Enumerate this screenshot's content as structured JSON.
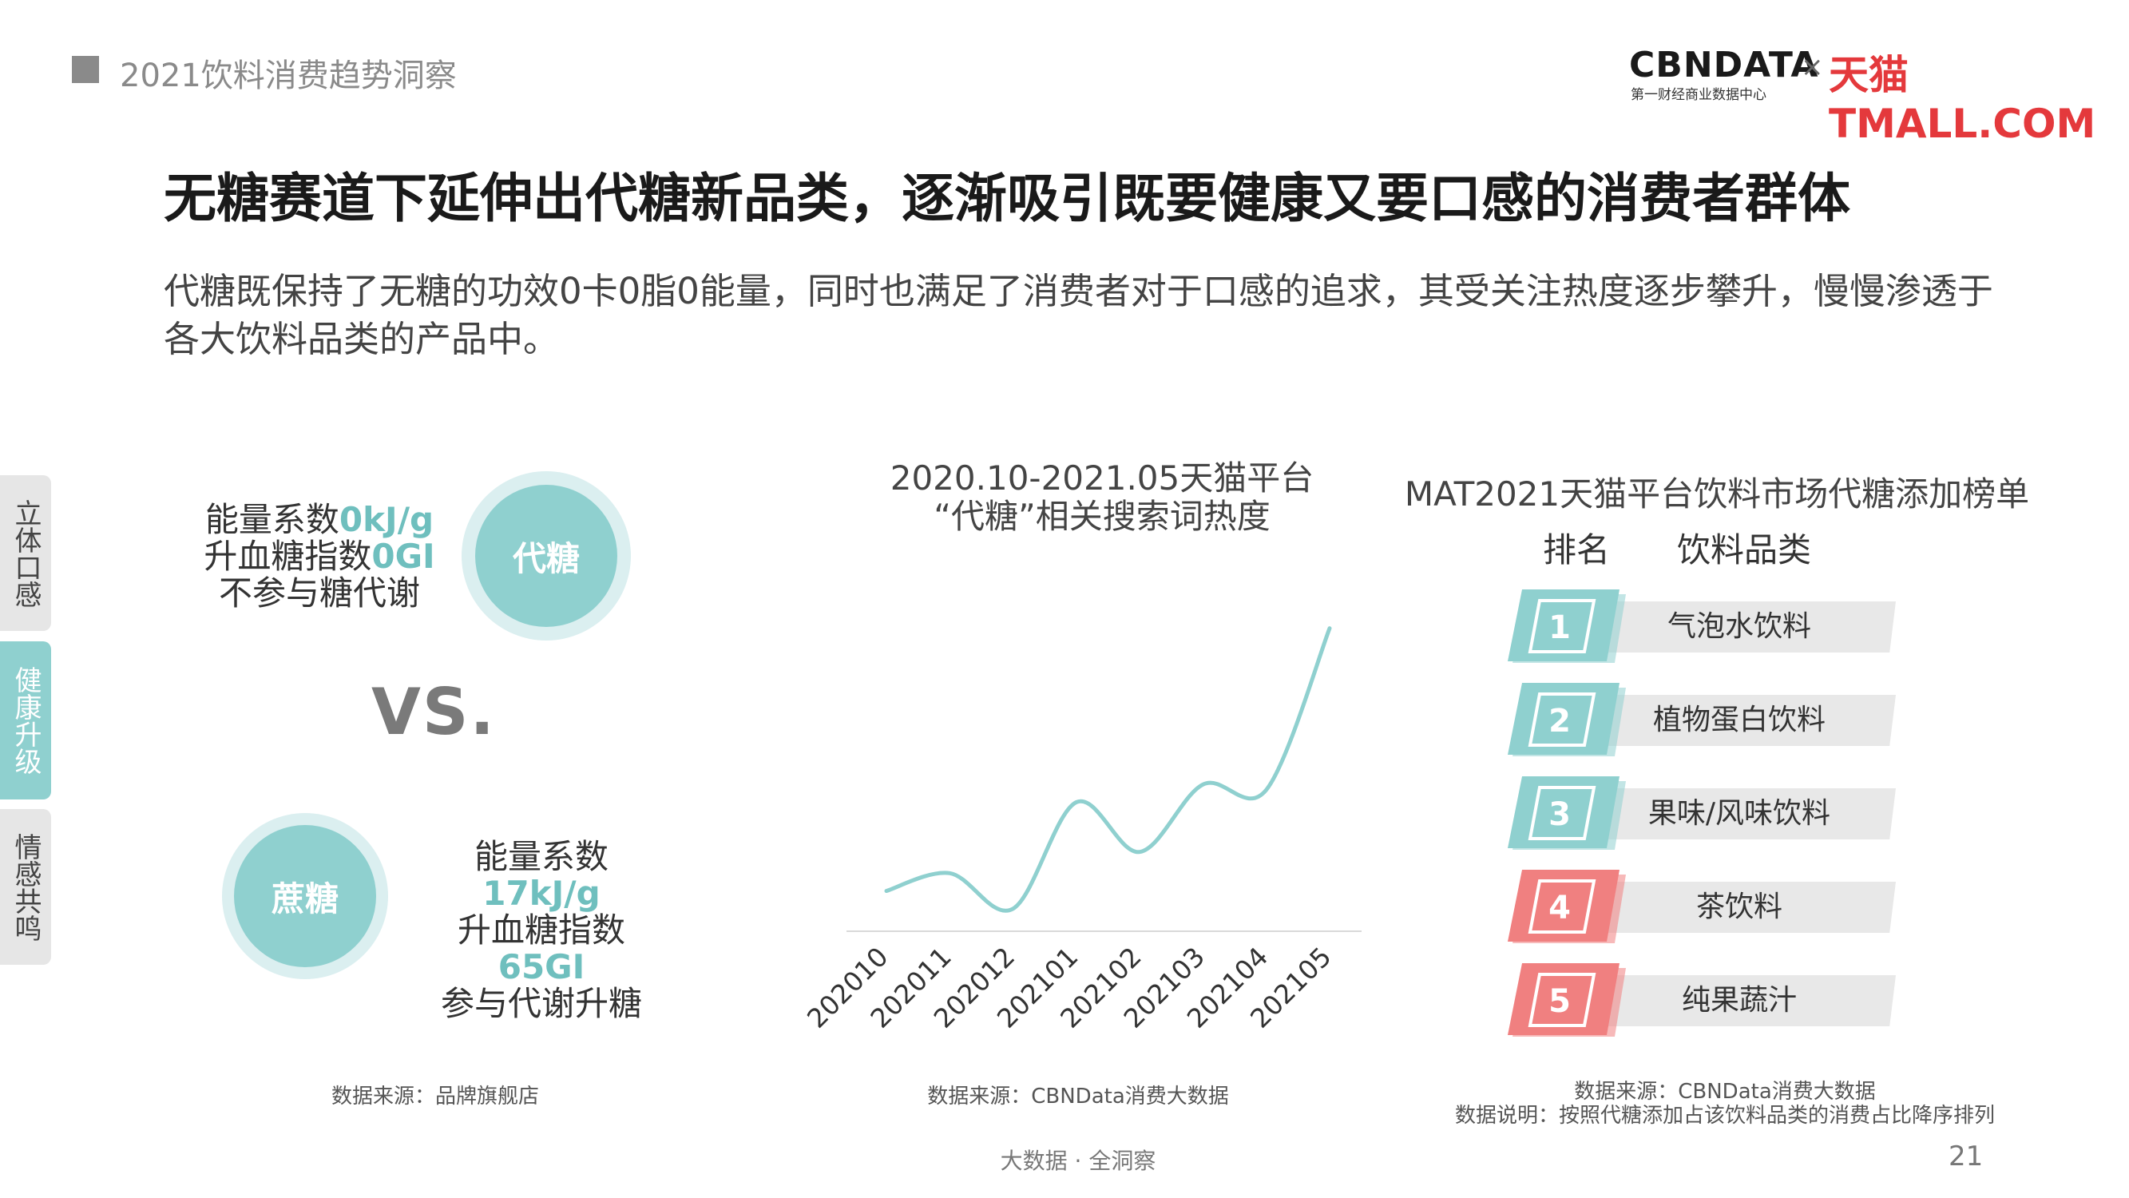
{
  "header": {
    "title": "2021饮料消费趋势洞察"
  },
  "logo": {
    "brand": "CBNDATA",
    "subtitle": "第一财经商业数据中心",
    "separator": "×",
    "partner": "天猫TMALL.COM"
  },
  "main_title": "无糖赛道下延伸出代糖新品类，逐渐吸引既要健康又要口感的消费者群体",
  "description": "代糖既保持了无糖的功效0卡0脂0能量，同时也满足了消费者对于口感的追求，其受关注热度逐步攀升，慢慢渗透于各大饮料品类的产品中。",
  "side_tabs": [
    "立体口感",
    "健康升级",
    "情感共鸣"
  ],
  "comparison": {
    "substitute": {
      "label": "代糖",
      "energy_prefix": "能量系数",
      "energy_value": "0kJ/g",
      "gi_prefix": "升血糖指数",
      "gi_value": "0GI",
      "metabolism": "不参与糖代谢"
    },
    "vs": "VS.",
    "sucrose": {
      "label": "蔗糖",
      "energy_prefix": "能量系数",
      "energy_value": "17kJ/g",
      "gi_prefix": "升血糖指数",
      "gi_value": "65GI",
      "metabolism": "参与代谢升糖"
    },
    "source": "数据来源：品牌旗舰店"
  },
  "chart_data": {
    "type": "line",
    "title_line1": "2020.10-2021.05天猫平台",
    "title_line2": "“代糖”相关搜索词热度",
    "categories": [
      "202010",
      "202011",
      "202012",
      "202101",
      "202102",
      "202103",
      "202104",
      "202105"
    ],
    "series": [
      {
        "values": [
          20,
          30,
          10,
          70,
          42,
          80,
          77,
          168
        ]
      }
    ],
    "color": "#8fd0cf",
    "ylim": [
      0,
      180
    ],
    "grid": false,
    "source": "数据来源：CBNData消费大数据"
  },
  "ranking": {
    "title": "MAT2021天猫平台饮料市场代糖添加榜单",
    "col_rank": "排名",
    "col_category": "饮料品类",
    "items": [
      {
        "rank": "1",
        "name": "气泡水饮料",
        "color": "#8fd0cf"
      },
      {
        "rank": "2",
        "name": "植物蛋白饮料",
        "color": "#8fd0cf"
      },
      {
        "rank": "3",
        "name": "果味/风味饮料",
        "color": "#8fd0cf"
      },
      {
        "rank": "4",
        "name": "茶饮料",
        "color": "#f08080"
      },
      {
        "rank": "5",
        "name": "纯果蔬汁",
        "color": "#f08080"
      }
    ],
    "source": "数据来源：CBNData消费大数据",
    "note": "数据说明：按照代糖添加占该饮料品类的消费占比降序排列"
  },
  "footer": {
    "text": "大数据 · 全洞察",
    "page": "21"
  }
}
